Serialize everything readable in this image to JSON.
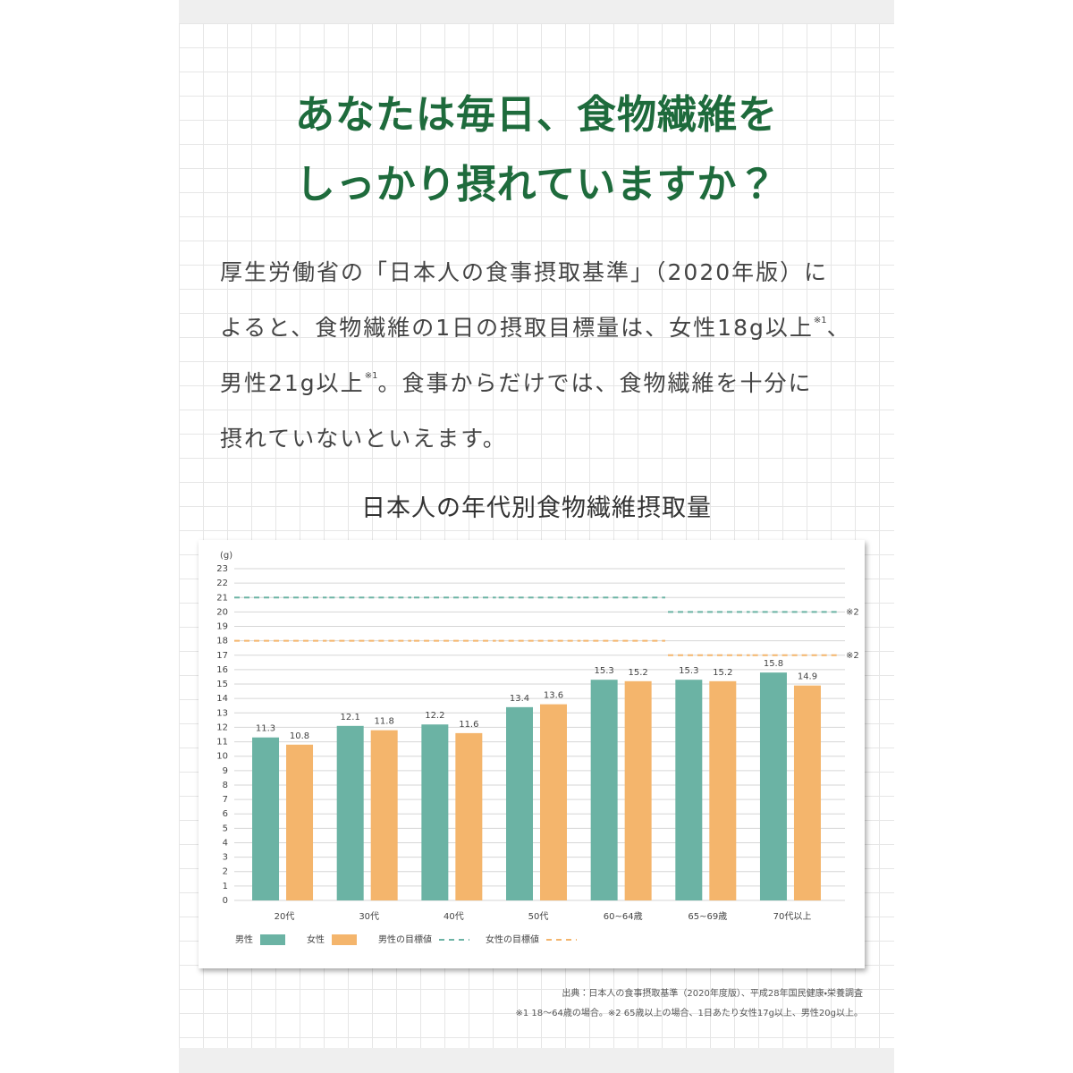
{
  "header": {
    "title_lines": [
      "あなたは毎日、食物繊維を",
      "しっかり摂れていますか？"
    ]
  },
  "intro": {
    "lines": [
      [
        "厚生労働省の「日本人の食事摂取基準」（2020年版）に"
      ],
      [
        "よると、食物繊維の1日の摂取目標量は、女性18g以上",
        "※1",
        "、"
      ],
      [
        "男性21g以上",
        "※1",
        "。食事からだけでは、食物繊維を十分に"
      ],
      [
        "摂れていないといえます。"
      ]
    ]
  },
  "chart_data": {
    "type": "bar",
    "title": "日本人の年代別食物繊維摂取量",
    "y_unit": "(g)",
    "categories": [
      "20代",
      "30代",
      "40代",
      "50代",
      "60~64歳",
      "65~69歳",
      "70代以上"
    ],
    "series": [
      {
        "name": "男性",
        "color": "#6bb3a4",
        "values": [
          11.3,
          12.1,
          12.2,
          13.4,
          15.3,
          15.3,
          15.8
        ]
      },
      {
        "name": "女性",
        "color": "#f4b56c",
        "values": [
          10.8,
          11.8,
          11.6,
          13.6,
          15.2,
          15.2,
          14.9
        ]
      },
      {
        "name": "男性の目標値",
        "color": "#6bb3a4",
        "type": "line",
        "dashed": true,
        "values": [
          21,
          21,
          21,
          21,
          21,
          20,
          20
        ]
      },
      {
        "name": "女性の目標値",
        "color": "#f4b56c",
        "type": "line",
        "dashed": true,
        "values": [
          18,
          18,
          18,
          18,
          18,
          17,
          17
        ]
      }
    ],
    "target_note": "※2",
    "ylim": [
      0,
      23
    ],
    "yticks": [
      0,
      1,
      2,
      3,
      4,
      5,
      6,
      7,
      8,
      9,
      10,
      11,
      12,
      13,
      14,
      15,
      16,
      17,
      18,
      19,
      20,
      21,
      22,
      23
    ],
    "grid": true,
    "legend": "bottom-left"
  },
  "footer": {
    "source": "出典：日本人の食事摂取基準（2020年度版）、平成28年国民健康・栄養調査",
    "note": "※1 18〜64歳の場合。※2 65歳以上の場合、1日あたり女性17g以上、男性20g以上。"
  }
}
